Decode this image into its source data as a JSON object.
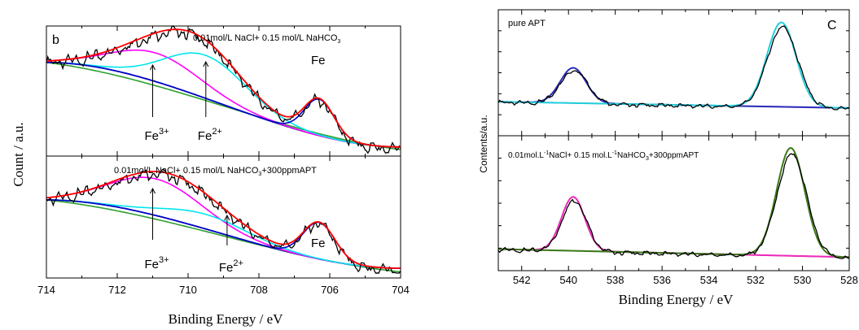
{
  "chart_data": [
    {
      "panel_label": "b",
      "type": "line",
      "xlabel": "Binding Energy / eV",
      "ylabel": "Count / a.u.",
      "xlim": [
        714,
        704
      ],
      "x_ticks": [
        "714",
        "712",
        "710",
        "708",
        "706",
        "704"
      ],
      "subplots": [
        {
          "label_parts": [
            "0.01mol/L NaCl+ 0.15 mol/L NaHCO",
            "3"
          ],
          "annotations": [
            {
              "text": "Fe",
              "sup": "",
              "x": 706.3
            },
            {
              "text": "Fe",
              "sup": "3+",
              "x": 711.0
            },
            {
              "text": "Fe",
              "sup": "2+",
              "x": 709.5
            }
          ],
          "background": {
            "start": 0.72,
            "end": 0.07
          },
          "baseline2": {
            "start": 0.72,
            "end": 0.05
          },
          "peaks": [
            {
              "name": "Fe3+",
              "center": 710.9,
              "height": 0.22,
              "sigma": 1.25
            },
            {
              "name": "Fe2+",
              "center": 709.5,
              "height": 0.33,
              "sigma": 1.15
            },
            {
              "name": "Fe",
              "center": 706.3,
              "height": 0.28,
              "sigma": 0.42
            }
          ]
        },
        {
          "label_parts": [
            "0.01mol/L NaCl+ 0.15 mol/L NaHCO",
            "3",
            "+300ppmAPT"
          ],
          "annotations": [
            {
              "text": "Fe",
              "sup": "3+",
              "x": 711.0
            },
            {
              "text": "Fe",
              "sup": "2+",
              "x": 708.9
            },
            {
              "text": "Fe",
              "sup": "",
              "x": 706.3
            }
          ],
          "background": {
            "start": 0.64,
            "end": 0.08
          },
          "baseline2": {
            "start": 0.64,
            "end": 0.05
          },
          "peaks": [
            {
              "name": "Fe3+",
              "center": 710.9,
              "height": 0.3,
              "sigma": 1.3
            },
            {
              "name": "Fe2+",
              "center": 709.5,
              "height": 0.12,
              "sigma": 1.2
            },
            {
              "name": "Fe",
              "center": 706.3,
              "height": 0.3,
              "sigma": 0.45
            }
          ]
        }
      ]
    },
    {
      "panel_label": "C",
      "type": "line",
      "xlabel": "Binding Energy / eV",
      "ylabel": "Contents/a.u.",
      "xlim": [
        543,
        528
      ],
      "x_ticks": [
        "542",
        "540",
        "538",
        "536",
        "534",
        "532",
        "530",
        "528"
      ],
      "subplots": [
        {
          "label_parts": [
            "pure APT"
          ],
          "background": {
            "start": 0.27,
            "end": 0.22
          },
          "peaks": [
            {
              "center": 539.8,
              "height": 0.28,
              "sigma": 0.55
            },
            {
              "center": 530.9,
              "height": 0.67,
              "sigma": 0.62
            }
          ]
        },
        {
          "label_parts": [
            "0.01mol.L",
            "-1",
            "NaCl+ 0.15 mol.L",
            "-1",
            "NaHCO",
            "3",
            "+300ppmAPT"
          ],
          "background": {
            "start": 0.16,
            "end": 0.1
          },
          "peaks": [
            {
              "center": 539.8,
              "height": 0.4,
              "sigma": 0.5
            },
            {
              "center": 530.5,
              "height": 0.8,
              "sigma": 0.6
            }
          ]
        }
      ]
    }
  ],
  "colors": {
    "raw": "#000000",
    "envelope": "#ff0000",
    "fe3": "#ff00ff",
    "fe2": "#00e5ee",
    "fe0": "#0000cc",
    "baseline": "#1a2e9c",
    "baseline2": "#2ca02c",
    "peak_blue": "#2b2bb8",
    "peak_cyan": "#22d0dc",
    "peak_magenta": "#ee2ab8",
    "peak_olive": "#3d7a18"
  }
}
